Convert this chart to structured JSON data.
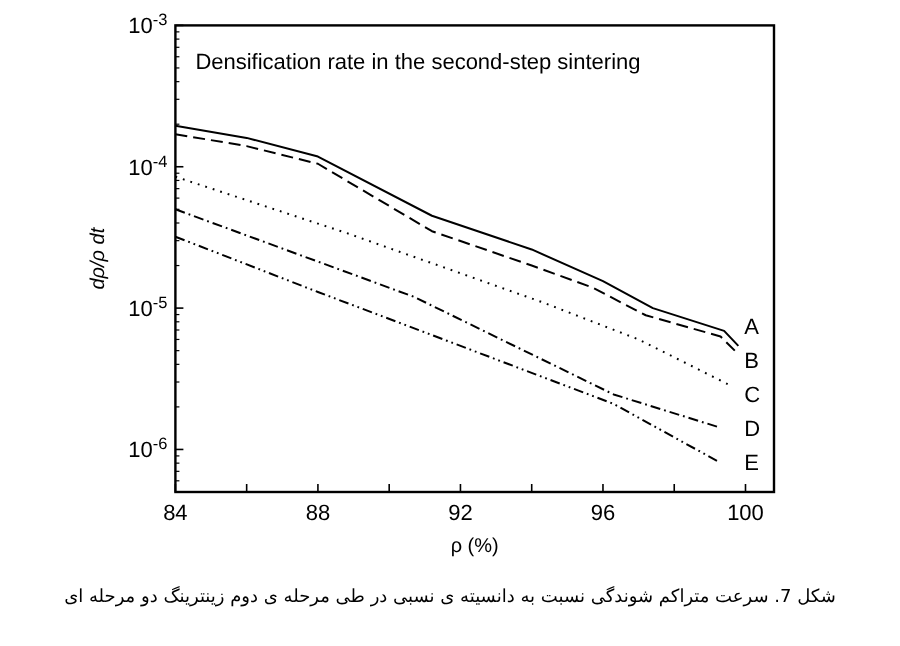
{
  "chart_data": {
    "type": "line",
    "title": "Densification rate in the second-step sintering",
    "xlabel": "ρ (%)",
    "ylabel": "dρ/ρ dt",
    "log": "y",
    "xlim": [
      84,
      100.8
    ],
    "ylim": [
      5e-07,
      0.001
    ],
    "xticks": [
      84,
      {
        "value": 86,
        "label": null
      },
      88,
      {
        "value": 90,
        "label": null
      },
      92,
      {
        "value": 94,
        "label": null
      },
      96,
      {
        "value": 98,
        "label": null
      },
      100
    ],
    "yticks": [
      {
        "value": 1e-06,
        "label": "10$^{-6}$"
      },
      {
        "value": 1e-05,
        "label": "10$^{-5}$"
      },
      {
        "value": 0.0001,
        "label": "10$^{-4}$"
      },
      {
        "value": 0.001,
        "label": "10$^{-3}$"
      }
    ],
    "series": [
      {
        "name": "A",
        "color": "#000000",
        "line_style": "solid",
        "x": [
          84,
          86,
          88,
          91.2,
          94,
          96,
          97.4,
          99.4,
          99.8
        ],
        "values": [
          0.000195,
          0.00016,
          0.000118,
          4.5e-05,
          2.6e-05,
          1.55e-05,
          1e-05,
          6.9e-06,
          5.4e-06
        ]
      },
      {
        "name": "B",
        "color": "#000000",
        "line_style": "dashed",
        "x": [
          84,
          86,
          88,
          91.2,
          94,
          95.7,
          97.2,
          99.3,
          99.7
        ],
        "values": [
          0.00017,
          0.00014,
          0.000105,
          3.5e-05,
          2e-05,
          1.4e-05,
          8.9e-06,
          6.3e-06,
          5e-06
        ]
      },
      {
        "name": "C",
        "color": "#000000",
        "line_style": "dotted",
        "x": [
          84,
          88.8,
          94.3,
          97,
          99.5
        ],
        "values": [
          8.5e-05,
          3.4e-05,
          1.1e-05,
          6e-06,
          2.9e-06
        ]
      },
      {
        "name": "D",
        "color": "#000000",
        "line_style": "dashdot",
        "x": [
          84,
          90.7,
          96.3,
          99.2
        ],
        "values": [
          5e-05,
          1.2e-05,
          2.45e-06,
          1.45e-06
        ]
      },
      {
        "name": "E",
        "color": "#000000",
        "line_style": "dashdotdot",
        "x": [
          84,
          88,
          91.6,
          96.3,
          99.2
        ],
        "values": [
          3.2e-05,
          1.3e-05,
          5.9e-06,
          2.1e-06,
          8.3e-07
        ]
      }
    ],
    "annotations": [
      "شکل 7. سرعت متراکم شوندگی نسبت به دانسیته ی نسبی در طی مرحله ی دوم زینترینگ دو مرحله ای"
    ]
  }
}
